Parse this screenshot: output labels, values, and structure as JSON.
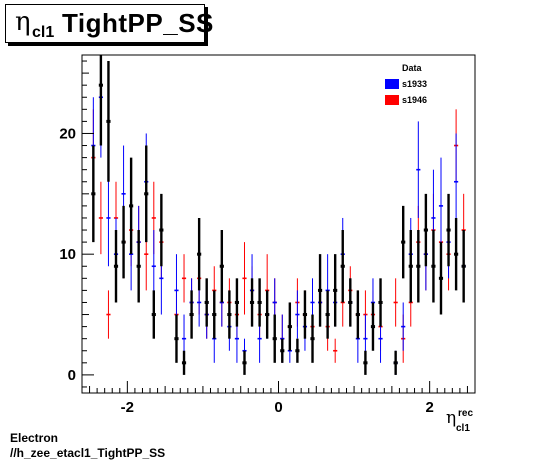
{
  "title": {
    "symbol": "η",
    "subscript": "cl1",
    "text": "TightPP_SS"
  },
  "footer": {
    "line1": "Electron",
    "line2": "//h_zee_etacl1_TightPP_SS"
  },
  "colors": {
    "data": "#000080",
    "s1933": "#0000ff",
    "s1946": "#ff0000"
  },
  "chart_data": {
    "type": "scatter",
    "xlabel": "η",
    "xlabel_sup": "rec",
    "xlabel_sub": "cl1",
    "xlim": [
      -2.6,
      2.6
    ],
    "ylim": [
      -1.5,
      26.5
    ],
    "x_ticks": [
      -2,
      0,
      2
    ],
    "y_ticks": [
      0,
      10,
      20
    ],
    "grid": false,
    "legend_position": "top-right",
    "bin_width": 0.1,
    "series": [
      {
        "name": "Data",
        "x": [
          -2.45,
          -2.35,
          -2.25,
          -2.15,
          -2.05,
          -1.95,
          -1.85,
          -1.75,
          -1.65,
          -1.55,
          -1.35,
          -1.25,
          -1.15,
          -1.05,
          -0.95,
          -0.85,
          -0.75,
          -0.65,
          -0.55,
          -0.45,
          -0.35,
          -0.25,
          -0.15,
          -0.05,
          0.05,
          0.15,
          0.25,
          0.35,
          0.45,
          0.55,
          0.65,
          0.75,
          0.85,
          0.95,
          1.05,
          1.15,
          1.25,
          1.35,
          1.55,
          1.65,
          1.75,
          1.85,
          1.95,
          2.05,
          2.15,
          2.25,
          2.35,
          2.45
        ],
        "y": [
          15,
          24,
          21,
          9,
          11,
          14,
          9,
          15,
          5,
          12,
          3,
          1,
          5,
          10,
          6,
          5,
          9,
          5,
          6,
          1,
          6,
          6,
          5,
          3,
          2,
          4,
          2,
          5,
          3,
          7,
          5,
          7,
          9,
          6,
          5,
          1,
          4,
          6,
          1,
          11,
          9,
          9,
          12,
          9,
          8,
          12,
          10,
          9
        ],
        "err": [
          4,
          5,
          5,
          3,
          3,
          4,
          3,
          4,
          2,
          3,
          2,
          1,
          2,
          3,
          2,
          2,
          3,
          2,
          2,
          1,
          2,
          2,
          2,
          2,
          1,
          2,
          1,
          2,
          2,
          3,
          2,
          3,
          3,
          2,
          2,
          1,
          2,
          2,
          1,
          3,
          3,
          3,
          3,
          3,
          3,
          3,
          3,
          3
        ]
      },
      {
        "name": "s1933",
        "x": [
          -2.45,
          -2.35,
          -2.25,
          -2.15,
          -2.05,
          -1.95,
          -1.85,
          -1.75,
          -1.65,
          -1.55,
          -1.35,
          -1.25,
          -1.15,
          -1.05,
          -0.95,
          -0.85,
          -0.75,
          -0.65,
          -0.55,
          -0.45,
          -0.35,
          -0.25,
          -0.15,
          -0.05,
          0.05,
          0.15,
          0.25,
          0.35,
          0.45,
          0.55,
          0.65,
          0.75,
          0.85,
          0.95,
          1.05,
          1.15,
          1.25,
          1.35,
          1.55,
          1.65,
          1.75,
          1.85,
          1.95,
          2.05,
          2.15,
          2.25,
          2.35,
          2.45
        ],
        "y": [
          19,
          23,
          13,
          10,
          15,
          10,
          11,
          16,
          9,
          8,
          7,
          3,
          6,
          6,
          5,
          3,
          6,
          4,
          3,
          2,
          7,
          3,
          5,
          6,
          3,
          2,
          5,
          4,
          6,
          6,
          7,
          6,
          10,
          6,
          3,
          3,
          6,
          3,
          1,
          4,
          10,
          17,
          10,
          13,
          14,
          11,
          16,
          9
        ],
        "err": [
          4,
          5,
          4,
          3,
          4,
          3,
          3,
          4,
          3,
          3,
          3,
          2,
          2,
          2,
          2,
          2,
          2,
          2,
          2,
          1,
          3,
          2,
          2,
          2,
          2,
          1,
          2,
          2,
          2,
          2,
          3,
          2,
          3,
          2,
          2,
          2,
          2,
          2,
          1,
          2,
          3,
          4,
          3,
          4,
          4,
          3,
          4,
          3
        ]
      },
      {
        "name": "s1946",
        "x": [
          -2.45,
          -2.35,
          -2.25,
          -2.15,
          -2.05,
          -1.95,
          -1.85,
          -1.75,
          -1.65,
          -1.55,
          -1.35,
          -1.25,
          -1.15,
          -1.05,
          -0.95,
          -0.85,
          -0.75,
          -0.65,
          -0.55,
          -0.45,
          -0.35,
          -0.25,
          -0.15,
          -0.05,
          0.05,
          0.15,
          0.25,
          0.35,
          0.45,
          0.55,
          0.65,
          0.75,
          0.85,
          0.95,
          1.05,
          1.15,
          1.25,
          1.35,
          1.55,
          1.65,
          1.75,
          1.85,
          1.95,
          2.05,
          2.15,
          2.25,
          2.35,
          2.45
        ],
        "y": [
          18,
          13,
          5,
          13,
          11,
          12,
          11,
          10,
          13,
          11,
          5,
          8,
          6,
          8,
          5,
          7,
          6,
          6,
          5,
          8,
          7,
          5,
          7,
          6,
          3,
          4,
          6,
          5,
          4,
          6,
          4,
          2,
          6,
          7,
          5,
          5,
          5,
          4,
          6,
          3,
          6,
          11,
          10,
          12,
          11,
          10,
          19,
          12
        ],
        "err": [
          4,
          3,
          2,
          3,
          3,
          3,
          3,
          3,
          3,
          3,
          2,
          2,
          2,
          3,
          2,
          2,
          2,
          2,
          2,
          3,
          2,
          2,
          3,
          2,
          2,
          2,
          2,
          2,
          2,
          2,
          2,
          1,
          2,
          2,
          2,
          2,
          2,
          2,
          2,
          2,
          2,
          3,
          3,
          3,
          3,
          3,
          3,
          3
        ]
      }
    ]
  }
}
